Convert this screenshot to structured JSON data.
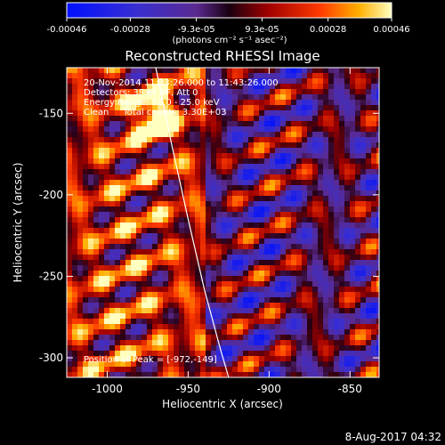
{
  "chart_data": {
    "type": "heatmap",
    "title": "Reconstructed RHESSI Image",
    "xlabel": "Heliocentric X (arcsec)",
    "ylabel": "Heliocentric Y (arcsec)",
    "xlim": [
      -1025,
      -832
    ],
    "ylim": [
      -312,
      -122
    ],
    "x_ticks": [
      -1000,
      -950,
      -900,
      -850
    ],
    "y_ticks": [
      -300,
      -250,
      -200,
      -150
    ],
    "colorbar": {
      "range": [
        -0.00046,
        0.00046
      ],
      "tick_values": [
        -0.00046,
        -0.00028,
        -9.3e-05,
        9.3e-05,
        0.00028,
        0.00046
      ],
      "tick_labels": [
        "-0.00046",
        "-0.00028",
        "-9.3e-05",
        "9.3e-05",
        "0.00028",
        "0.00046"
      ],
      "units_label": "(photons cm⁻² s⁻¹ asec⁻²)"
    },
    "annotations": [
      "20-Nov-2014 11:33:26.000 to 11:43:26.000",
      "Detectors: 3F 6F 9F, Att 0",
      "Energy Range: 12.0 - 25.0 keV",
      "Clean     Total counts: 3.30E+03"
    ],
    "peak_label": "Position of Peak = [-972,-149]",
    "peak": {
      "x": -972,
      "y": -149
    },
    "limb_curve": [
      {
        "x": -970,
        "y": -122
      },
      {
        "x": -960,
        "y": -170
      },
      {
        "x": -950,
        "y": -215
      },
      {
        "x": -940,
        "y": -258
      },
      {
        "x": -930,
        "y": -295
      },
      {
        "x": -925,
        "y": -312
      }
    ],
    "grid": false
  },
  "footer": {
    "timestamp": "8-Aug-2017 04:32"
  }
}
